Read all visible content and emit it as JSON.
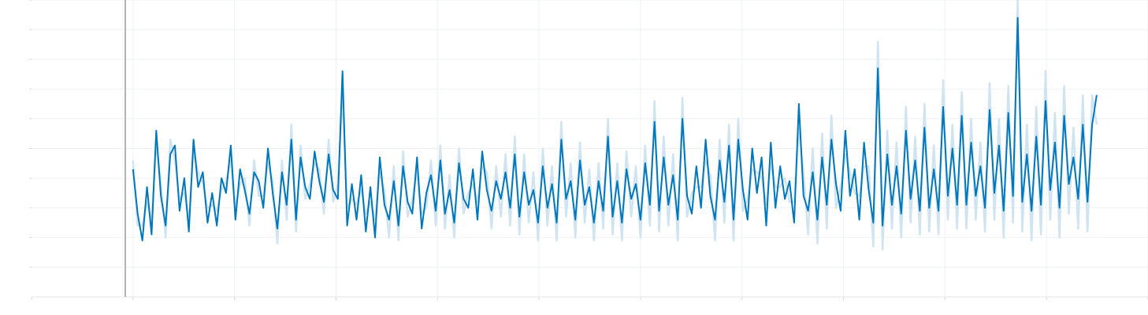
{
  "chart_data": {
    "type": "line",
    "title": "",
    "xlabel": "",
    "ylabel": "",
    "x_range": [
      -1,
      10
    ],
    "y_range": [
      0,
      10
    ],
    "grid": true,
    "legend": "none",
    "band_color": "#cfe3f1",
    "line_color": "#0077bb",
    "series": [
      {
        "x": [
          0,
          0.046,
          0.092,
          0.138,
          0.183,
          0.229,
          0.275,
          0.321,
          0.367,
          0.413,
          0.459,
          0.505,
          0.55,
          0.596,
          0.642,
          0.688,
          0.734,
          0.78,
          0.826,
          0.872,
          0.917,
          0.963,
          1.009,
          1.055,
          1.101,
          1.147,
          1.193,
          1.239,
          1.284,
          1.33,
          1.376,
          1.422,
          1.468,
          1.514,
          1.56,
          1.606,
          1.651,
          1.697,
          1.743,
          1.789,
          1.835,
          1.881,
          1.927,
          1.972,
          2.018,
          2.064,
          2.11,
          2.156,
          2.202,
          2.248,
          2.294,
          2.339,
          2.385,
          2.431,
          2.477,
          2.523,
          2.569,
          2.615,
          2.661,
          2.706,
          2.752,
          2.798,
          2.844,
          2.89,
          2.936,
          2.982,
          3.028,
          3.073,
          3.119,
          3.165,
          3.211,
          3.257,
          3.303,
          3.349,
          3.394,
          3.44,
          3.486,
          3.532,
          3.578,
          3.624,
          3.67,
          3.716,
          3.761,
          3.807,
          3.853,
          3.899,
          3.945,
          3.991,
          4.037,
          4.083,
          4.128,
          4.174,
          4.22,
          4.266,
          4.312,
          4.358,
          4.404,
          4.45,
          4.495,
          4.541,
          4.587,
          4.633,
          4.679,
          4.725,
          4.771,
          4.817,
          4.862,
          4.908,
          4.954,
          5,
          5.046,
          5.092,
          5.138,
          5.183,
          5.229,
          5.275,
          5.321,
          5.367,
          5.413,
          5.459,
          5.505,
          5.55,
          5.596,
          5.642,
          5.688,
          5.734,
          5.78,
          5.826,
          5.872,
          5.917,
          5.963,
          6.009,
          6.055,
          6.101,
          6.147,
          6.193,
          6.239,
          6.284,
          6.33,
          6.376,
          6.422,
          6.468,
          6.514,
          6.56,
          6.606,
          6.651,
          6.697,
          6.743,
          6.789,
          6.835,
          6.881,
          6.927,
          6.972,
          7.018,
          7.064,
          7.11,
          7.156,
          7.202,
          7.248,
          7.294,
          7.339,
          7.385,
          7.431,
          7.477,
          7.523,
          7.569,
          7.615,
          7.661,
          7.706,
          7.752,
          7.798,
          7.844,
          7.89,
          7.936,
          7.982,
          8.028,
          8.073,
          8.119,
          8.165,
          8.211,
          8.257,
          8.303,
          8.349,
          8.394,
          8.44,
          8.486,
          8.532,
          8.578,
          8.624,
          8.67,
          8.716,
          8.761,
          8.807,
          8.853,
          8.899,
          8.945,
          8.991,
          9.037,
          9.083,
          9.128,
          9.174,
          9.22,
          9.266,
          9.312,
          9.358,
          9.404,
          9.45,
          9.495
        ],
        "y": [
          4.3,
          2.8,
          1.9,
          3.7,
          2.1,
          5.6,
          3.4,
          2.4,
          4.8,
          5.1,
          2.9,
          4.0,
          2.2,
          5.3,
          3.7,
          4.2,
          2.5,
          3.5,
          2.4,
          4.0,
          3.5,
          5.1,
          2.6,
          4.3,
          3.6,
          2.8,
          4.2,
          3.9,
          3.0,
          5.0,
          3.5,
          2.3,
          4.2,
          3.1,
          5.3,
          2.6,
          4.7,
          3.7,
          3.3,
          4.9,
          3.9,
          3.2,
          4.8,
          3.6,
          3.3,
          7.6,
          2.4,
          3.8,
          2.6,
          4.1,
          2.2,
          3.7,
          2.0,
          4.7,
          3.1,
          2.6,
          3.9,
          2.4,
          4.4,
          3.2,
          2.8,
          4.7,
          2.3,
          3.5,
          4.1,
          2.9,
          4.6,
          2.8,
          3.6,
          2.5,
          4.5,
          3.3,
          3.0,
          4.3,
          2.6,
          4.9,
          3.6,
          2.9,
          3.9,
          3.3,
          4.2,
          3.0,
          4.8,
          2.7,
          4.2,
          3.1,
          3.6,
          2.5,
          4.4,
          3.0,
          3.8,
          2.5,
          5.3,
          3.3,
          3.9,
          2.6,
          4.6,
          3.1,
          3.7,
          2.5,
          3.9,
          2.9,
          5.4,
          2.7,
          3.9,
          2.5,
          4.3,
          3.3,
          3.8,
          2.6,
          4.5,
          3.1,
          5.9,
          2.9,
          4.7,
          3.1,
          4.1,
          2.6,
          6.0,
          3.4,
          2.8,
          4.4,
          3.0,
          5.3,
          3.4,
          2.6,
          4.6,
          3.2,
          5.1,
          2.6,
          5.3,
          3.6,
          2.6,
          5.0,
          3.5,
          4.7,
          2.4,
          5.2,
          3.0,
          4.4,
          3.3,
          3.9,
          2.5,
          6.5,
          3.4,
          2.9,
          4.2,
          2.6,
          4.7,
          3.1,
          5.3,
          3.8,
          2.9,
          5.6,
          3.4,
          4.3,
          2.6,
          5.2,
          3.6,
          2.5,
          7.7,
          2.4,
          4.8,
          3.1,
          4.4,
          2.8,
          5.6,
          3.3,
          4.6,
          2.9,
          5.7,
          3.0,
          4.3,
          2.9,
          6.4,
          3.4,
          5.0,
          3.1,
          6.1,
          3.1,
          5.2,
          3.4,
          4.4,
          3.0,
          6.3,
          3.5,
          5.1,
          2.9,
          6.2,
          3.4,
          9.4,
          3.2,
          4.8,
          2.9,
          5.4,
          3.1,
          6.6,
          3.6,
          5.2,
          3.0,
          6.1,
          3.8,
          4.7,
          3.3,
          5.8,
          3.2,
          5.8,
          6.8
        ],
        "y_low": [
          4.0,
          2.4,
          1.4,
          3.2,
          1.7,
          5.2,
          3.0,
          2.0,
          4.3,
          4.6,
          2.5,
          3.5,
          1.8,
          4.9,
          3.2,
          3.8,
          2.0,
          3.1,
          1.9,
          3.6,
          3.1,
          4.6,
          2.2,
          3.8,
          3.2,
          2.4,
          3.8,
          3.4,
          2.6,
          4.5,
          3.1,
          1.8,
          3.8,
          2.6,
          4.8,
          2.2,
          4.3,
          3.3,
          2.8,
          4.5,
          3.5,
          2.8,
          4.3,
          3.2,
          2.8,
          6.8,
          1.8,
          3.3,
          2.1,
          3.6,
          1.6,
          3.2,
          1.4,
          4.2,
          2.6,
          2.0,
          3.4,
          1.9,
          3.9,
          2.7,
          2.3,
          4.2,
          1.8,
          3.0,
          3.6,
          2.4,
          4.1,
          2.3,
          3.1,
          2.0,
          4.0,
          2.8,
          2.5,
          3.8,
          2.0,
          4.4,
          3.0,
          2.3,
          3.4,
          2.7,
          3.6,
          2.4,
          4.2,
          2.1,
          3.6,
          2.5,
          3.0,
          1.9,
          3.8,
          2.4,
          3.2,
          1.9,
          4.7,
          2.7,
          3.3,
          2.0,
          4.0,
          2.5,
          3.1,
          1.9,
          3.3,
          2.3,
          4.8,
          2.1,
          3.3,
          1.9,
          3.7,
          2.7,
          3.2,
          2.0,
          3.9,
          2.4,
          5.2,
          2.2,
          4.0,
          2.4,
          3.4,
          1.9,
          5.3,
          2.7,
          2.1,
          3.7,
          2.3,
          4.6,
          2.7,
          1.9,
          3.9,
          2.5,
          4.4,
          1.9,
          4.6,
          2.9,
          1.9,
          4.3,
          2.8,
          4.0,
          1.7,
          4.5,
          2.3,
          3.7,
          2.6,
          3.2,
          1.8,
          5.7,
          2.6,
          2.1,
          3.4,
          1.8,
          3.9,
          2.3,
          4.5,
          3.0,
          2.1,
          4.8,
          2.6,
          3.5,
          1.8,
          4.4,
          2.8,
          1.7,
          6.8,
          1.6,
          4.0,
          2.3,
          3.6,
          2.0,
          4.8,
          2.5,
          3.8,
          2.1,
          4.9,
          2.2,
          3.5,
          2.1,
          5.5,
          2.6,
          4.2,
          2.3,
          5.3,
          2.3,
          4.4,
          2.6,
          3.6,
          2.2,
          5.4,
          2.6,
          4.2,
          2.0,
          5.3,
          2.5,
          8.3,
          2.2,
          3.8,
          1.9,
          4.4,
          2.1,
          5.6,
          2.6,
          4.2,
          2.0,
          5.1,
          2.8,
          3.7,
          2.3,
          4.8,
          2.2,
          4.8,
          5.8
        ],
        "y_high": [
          4.6,
          3.2,
          2.4,
          4.2,
          2.5,
          6.0,
          3.8,
          2.8,
          5.3,
          5.6,
          3.3,
          4.5,
          2.6,
          5.7,
          4.2,
          4.6,
          3.0,
          3.9,
          2.9,
          4.4,
          3.9,
          5.6,
          3.0,
          4.8,
          4.0,
          3.2,
          4.6,
          4.4,
          3.4,
          5.5,
          3.9,
          2.8,
          4.6,
          3.6,
          5.8,
          3.0,
          5.1,
          4.1,
          3.8,
          5.3,
          4.3,
          3.6,
          5.3,
          4.0,
          3.8,
          8.4,
          3.0,
          4.3,
          3.1,
          4.6,
          2.8,
          4.2,
          2.6,
          5.2,
          3.6,
          3.2,
          4.4,
          2.9,
          4.9,
          3.7,
          3.3,
          5.2,
          2.8,
          4.0,
          4.6,
          3.4,
          5.1,
          3.3,
          4.1,
          3.0,
          5.0,
          3.8,
          3.5,
          4.8,
          3.2,
          5.4,
          4.2,
          3.5,
          4.4,
          3.9,
          4.8,
          3.6,
          5.4,
          3.3,
          4.8,
          3.7,
          4.2,
          3.1,
          5.0,
          3.6,
          4.4,
          3.1,
          5.9,
          3.9,
          4.5,
          3.2,
          5.2,
          3.7,
          4.3,
          3.1,
          4.5,
          3.5,
          6.0,
          3.3,
          4.5,
          3.1,
          4.9,
          3.9,
          4.4,
          3.2,
          5.1,
          3.8,
          6.6,
          3.6,
          5.4,
          3.8,
          4.8,
          3.3,
          6.7,
          4.1,
          3.5,
          5.1,
          3.7,
          6.0,
          4.1,
          3.3,
          5.3,
          3.9,
          5.8,
          3.3,
          6.0,
          4.3,
          3.3,
          5.7,
          4.2,
          5.4,
          3.1,
          5.9,
          3.7,
          5.1,
          4.0,
          4.6,
          3.2,
          7.3,
          4.2,
          3.7,
          5.0,
          3.4,
          5.5,
          3.9,
          6.1,
          4.6,
          3.7,
          6.4,
          4.2,
          5.1,
          3.4,
          6.0,
          4.4,
          3.3,
          8.6,
          3.2,
          5.6,
          3.9,
          5.2,
          3.6,
          6.4,
          4.1,
          5.4,
          3.7,
          6.5,
          3.8,
          5.1,
          3.7,
          7.3,
          4.2,
          5.8,
          3.9,
          6.9,
          3.9,
          6.0,
          4.2,
          5.2,
          3.8,
          7.2,
          4.4,
          6.0,
          3.8,
          7.1,
          4.3,
          10.0,
          4.2,
          5.8,
          3.9,
          6.4,
          4.1,
          7.6,
          4.6,
          6.2,
          4.0,
          7.1,
          4.8,
          5.7,
          4.3,
          6.8,
          4.2,
          6.8,
          7.8
        ]
      }
    ]
  }
}
